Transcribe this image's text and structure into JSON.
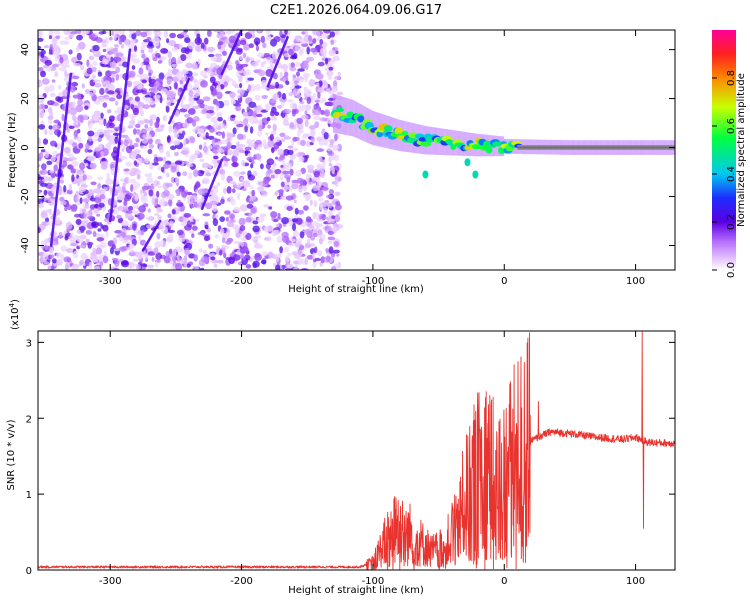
{
  "figure_title": "C2E1.2026.064.09.06.G17",
  "colors": {
    "snr_line": "#e8332e",
    "axis": "#000000",
    "background": "#ffffff"
  },
  "chart_data": [
    {
      "type": "heatmap",
      "xlabel": "Height of straight line (km)",
      "ylabel": "Frequency (Hz)",
      "xlim": [
        -355,
        130
      ],
      "ylim": [
        -50,
        48
      ],
      "xticks": [
        -300,
        -200,
        -100,
        0,
        100
      ],
      "xtick_labels": [
        "-300",
        "-200",
        "-100",
        "0",
        "100"
      ],
      "yticks": [
        -40,
        -20,
        0,
        20,
        40
      ],
      "ytick_labels": [
        "-40",
        "-20",
        "0",
        "20",
        "40"
      ],
      "colorbar": {
        "label": "Normalized spectral amplitude",
        "range": [
          0,
          1
        ],
        "ticks": [
          0.0,
          0.2,
          0.4,
          0.6,
          0.8
        ],
        "tick_labels": [
          "0.0",
          "0.2",
          "0.4",
          "0.6",
          "0.8"
        ]
      },
      "noise_region_km": [
        -355,
        -125
      ],
      "signal_track_hz": [
        {
          "x": -130,
          "y": 14
        },
        {
          "x": -115,
          "y": 12
        },
        {
          "x": -100,
          "y": 8
        },
        {
          "x": -80,
          "y": 5
        },
        {
          "x": -60,
          "y": 3
        },
        {
          "x": -40,
          "y": 2
        },
        {
          "x": -20,
          "y": 1
        },
        {
          "x": 0,
          "y": 0.5
        },
        {
          "x": 50,
          "y": 0
        },
        {
          "x": 100,
          "y": 0
        },
        {
          "x": 130,
          "y": 0
        }
      ]
    },
    {
      "type": "line",
      "xlabel": "Height of straight line (km)",
      "ylabel": "SNR (10 * v/v)",
      "scale_label": "(x10",
      "scale_exponent": "4",
      "scale_suffix": ")",
      "xlim": [
        -355,
        130
      ],
      "ylim": [
        0,
        3.15
      ],
      "xticks": [
        -300,
        -200,
        -100,
        0,
        100
      ],
      "xtick_labels": [
        "-300",
        "-200",
        "-100",
        "0",
        "100"
      ],
      "yticks": [
        0,
        1,
        2,
        3
      ],
      "ytick_labels": [
        "0",
        "1",
        "2",
        "3"
      ],
      "series": [
        {
          "name": "SNR",
          "envelope": [
            {
              "x": -355,
              "y": 0.04
            },
            {
              "x": -110,
              "y": 0.04
            },
            {
              "x": -100,
              "y": 0.1
            },
            {
              "x": -90,
              "y": 0.4
            },
            {
              "x": -80,
              "y": 0.6
            },
            {
              "x": -70,
              "y": 0.45
            },
            {
              "x": -55,
              "y": 0.25
            },
            {
              "x": -45,
              "y": 0.3
            },
            {
              "x": -35,
              "y": 0.7
            },
            {
              "x": -25,
              "y": 1.1
            },
            {
              "x": -15,
              "y": 1.4
            },
            {
              "x": -5,
              "y": 1.1
            },
            {
              "x": 0,
              "y": 1.2
            },
            {
              "x": 10,
              "y": 1.5
            },
            {
              "x": 20,
              "y": 1.7
            },
            {
              "x": 35,
              "y": 1.82
            },
            {
              "x": 50,
              "y": 1.8
            },
            {
              "x": 70,
              "y": 1.75
            },
            {
              "x": 90,
              "y": 1.72
            },
            {
              "x": 100,
              "y": 1.75
            },
            {
              "x": 110,
              "y": 1.68
            },
            {
              "x": 130,
              "y": 1.67
            }
          ],
          "peaks": [
            {
              "x": -83,
              "y": 0.8
            },
            {
              "x": -40,
              "y": 0.75
            },
            {
              "x": -12,
              "y": 2.18
            },
            {
              "x": 5,
              "y": 2.05
            },
            {
              "x": 26,
              "y": 2.22
            },
            {
              "x": 105,
              "y": 3.15
            },
            {
              "x": 106,
              "y": 0.55
            }
          ]
        }
      ]
    }
  ]
}
